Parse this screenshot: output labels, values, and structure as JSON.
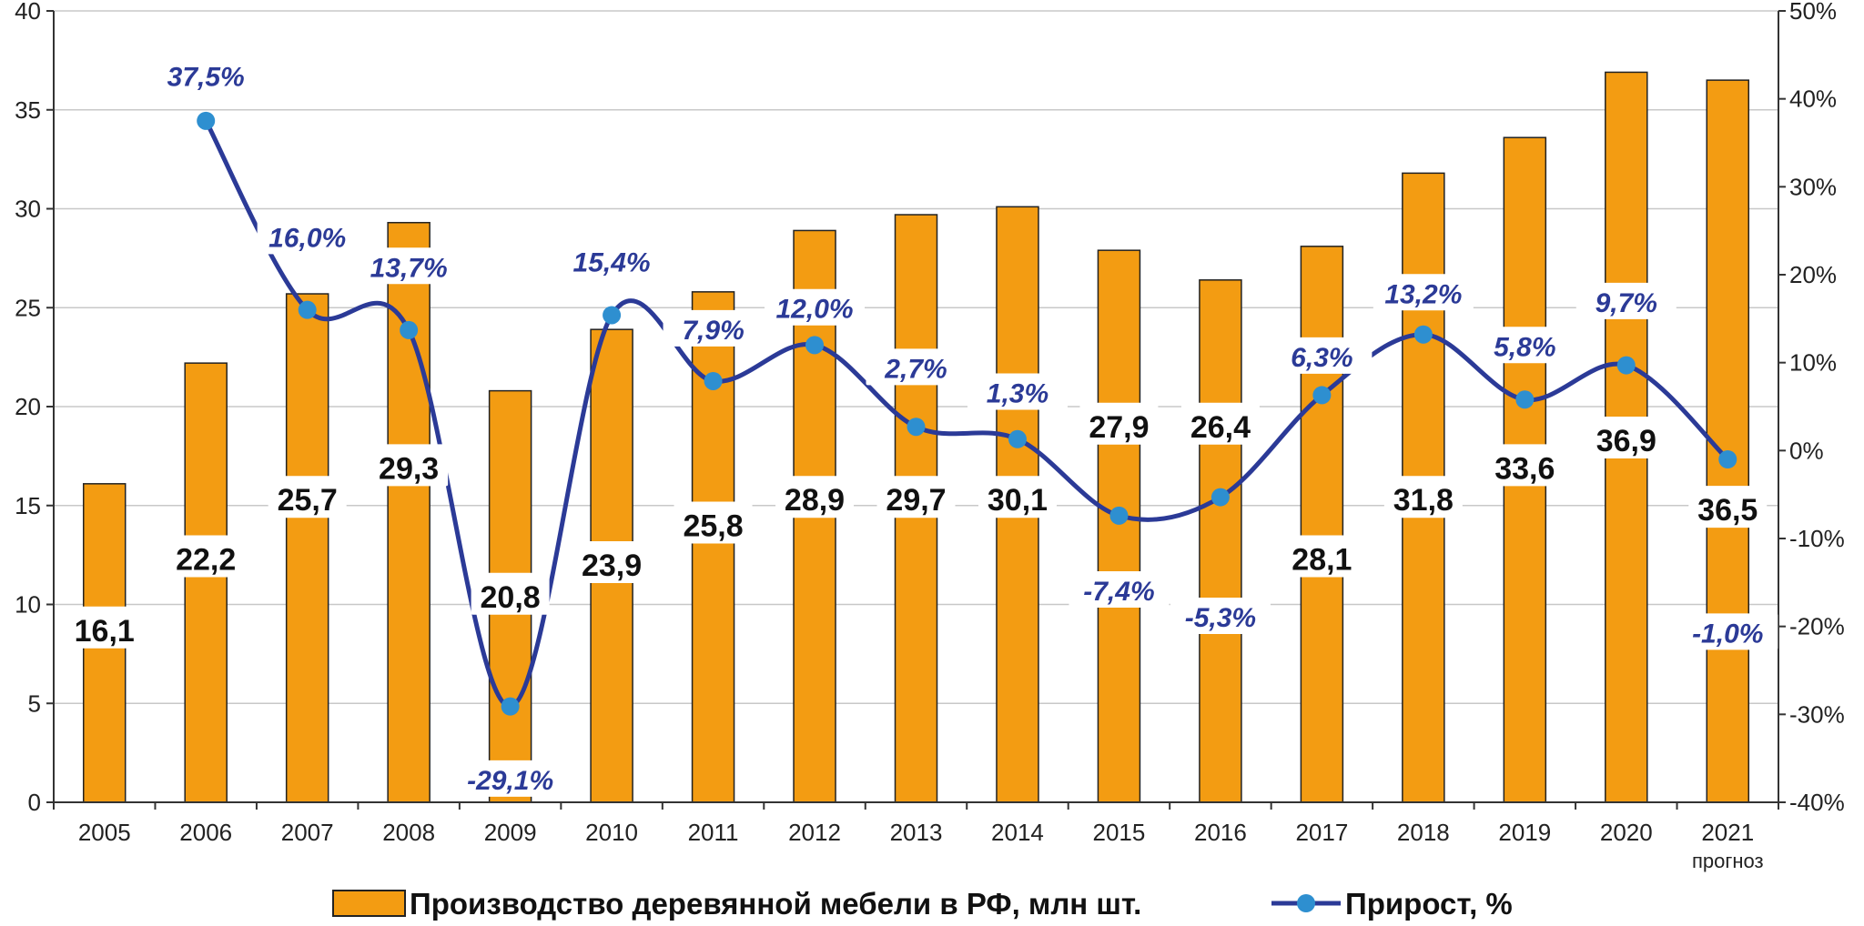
{
  "chart_data": {
    "type": "bar+line",
    "categories": [
      "2005",
      "2006",
      "2007",
      "2008",
      "2009",
      "2010",
      "2011",
      "2012",
      "2013",
      "2014",
      "2015",
      "2016",
      "2017",
      "2018",
      "2019",
      "2020",
      "2021"
    ],
    "category_sublabels": {
      "2021": "прогноз"
    },
    "bar_series": {
      "name": "Производство деревянной мебели в РФ, млн шт.",
      "values": [
        16.1,
        22.2,
        25.7,
        29.3,
        20.8,
        23.9,
        25.8,
        28.9,
        29.7,
        30.1,
        27.9,
        26.4,
        28.1,
        31.8,
        33.6,
        36.9,
        36.5
      ],
      "labels": [
        "16,1",
        "22,2",
        "25,7",
        "29,3",
        "20,8",
        "23,9",
        "25,8",
        "28,9",
        "29,7",
        "30,1",
        "27,9",
        "26,4",
        "28,1",
        "31,8",
        "33,6",
        "36,9",
        "36,5"
      ],
      "color": "#F39C12"
    },
    "line_series": {
      "name": "Прирост, %",
      "x_categories": [
        "2006",
        "2007",
        "2008",
        "2009",
        "2010",
        "2011",
        "2012",
        "2013",
        "2014",
        "2015",
        "2016",
        "2017",
        "2018",
        "2019",
        "2020",
        "2021"
      ],
      "values": [
        37.5,
        16.0,
        13.7,
        -29.1,
        15.4,
        7.9,
        12.0,
        2.7,
        1.3,
        -7.4,
        -5.3,
        6.3,
        13.2,
        5.8,
        9.7,
        -1.0
      ],
      "labels": [
        "37,5%",
        "16,0%",
        "13,7%",
        "-29,1%",
        "15,4%",
        "7,9%",
        "12,0%",
        "2,7%",
        "1,3%",
        "-7,4%",
        "-5,3%",
        "6,3%",
        "13,2%",
        "5,8%",
        "9,7%",
        "-1,0%"
      ],
      "line_color": "#2B3A97",
      "marker_color": "#2E8FD0"
    },
    "y_left": {
      "min": 0,
      "max": 40,
      "ticks": [
        0,
        5,
        10,
        15,
        20,
        25,
        30,
        35,
        40
      ],
      "tick_labels": [
        "0",
        "5",
        "10",
        "15",
        "20",
        "25",
        "30",
        "35",
        "40"
      ]
    },
    "y_right": {
      "min": -40,
      "max": 50,
      "ticks": [
        -40,
        -30,
        -20,
        -10,
        0,
        10,
        20,
        30,
        40,
        50
      ],
      "tick_labels": [
        "-40%",
        "-30%",
        "-20%",
        "-10%",
        "0%",
        "10%",
        "20%",
        "30%",
        "40%",
        "50%"
      ]
    },
    "grid": true,
    "legend": {
      "position": "bottom",
      "items": [
        {
          "label": "Производство деревянной мебели в РФ, млн шт.",
          "kind": "bar"
        },
        {
          "label": "Прирост, %",
          "kind": "line"
        }
      ]
    }
  }
}
